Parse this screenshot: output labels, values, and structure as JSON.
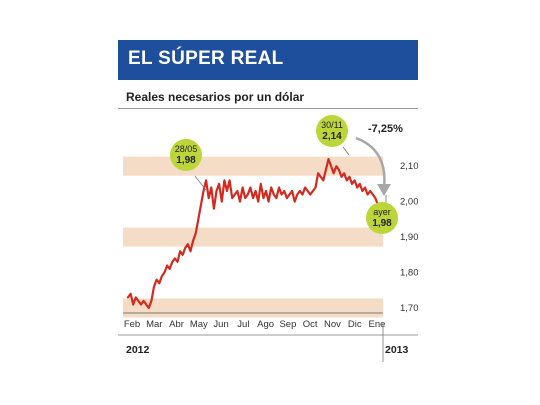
{
  "title": "EL SÚPER REAL",
  "subtitle": "Reales necesarios por un dólar",
  "colors": {
    "header": "#1e4f9c",
    "band": "#f5dcc6",
    "line": "#d32a1f",
    "callout": "#bcd63a",
    "arrow": "#a7a7a7"
  },
  "chart_data": {
    "type": "line",
    "title": "EL SÚPER REAL",
    "subtitle": "Reales necesarios por un dólar",
    "xlabel": "",
    "ylabel": "",
    "ylim": [
      1.7,
      2.14
    ],
    "yticks": [
      "1,70",
      "1,80",
      "1,90",
      "2,00",
      "2,10"
    ],
    "ytick_values": [
      1.7,
      1.8,
      1.9,
      2.0,
      2.1
    ],
    "months": [
      "Feb",
      "Mar",
      "Abr",
      "May",
      "Jun",
      "Jul",
      "Ago",
      "Sep",
      "Oct",
      "Nov",
      "Dic",
      "Ene"
    ],
    "years": [
      "2012",
      "2013"
    ],
    "grid": "alternating horizontal bands",
    "series": [
      {
        "values": [
          1.73,
          1.74,
          1.71,
          1.73,
          1.72,
          1.71,
          1.72,
          1.71,
          1.7,
          1.72,
          1.76,
          1.78,
          1.77,
          1.79,
          1.8,
          1.82,
          1.81,
          1.83,
          1.84,
          1.83,
          1.86,
          1.85,
          1.87,
          1.88,
          1.86,
          1.89,
          1.91,
          1.95,
          1.99,
          2.03,
          2.06,
          2.01,
          2.04,
          1.98,
          2.03,
          2.05,
          2.0,
          2.06,
          2.03,
          2.06,
          2.01,
          2.02,
          2.03,
          2.0,
          2.04,
          2.01,
          2.02,
          2.04,
          2.01,
          2.03,
          2.0,
          2.05,
          2.01,
          2.03,
          2.0,
          2.04,
          2.02,
          2.01,
          2.04,
          2.02,
          2.03,
          2.01,
          2.02,
          2.03,
          2.0,
          2.02,
          2.03,
          2.02,
          2.04,
          2.03,
          2.02,
          2.03,
          2.04,
          2.08,
          2.07,
          2.06,
          2.09,
          2.12,
          2.1,
          2.08,
          2.1,
          2.09,
          2.07,
          2.08,
          2.06,
          2.07,
          2.05,
          2.06,
          2.04,
          2.05,
          2.03,
          2.04,
          2.02,
          2.03,
          2.02,
          2.01,
          1.99
        ]
      }
    ],
    "annotations": [
      {
        "label": "28/05",
        "value": "1,98"
      },
      {
        "label": "30/11",
        "value": "2,14"
      },
      {
        "label": "ayer",
        "value": "1,98"
      },
      {
        "label": "-7,25%"
      }
    ]
  }
}
